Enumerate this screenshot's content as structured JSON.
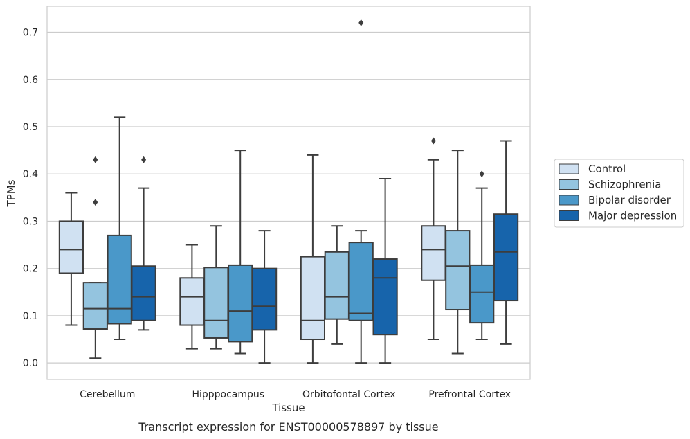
{
  "chart_data": {
    "type": "boxplot",
    "caption": "Transcript expression for ENST00000578897 by tissue",
    "xlabel": "Tissue",
    "ylabel": "TPMs",
    "ylim": [
      -0.035,
      0.755
    ],
    "yticks": [
      0.0,
      0.1,
      0.2,
      0.3,
      0.4,
      0.5,
      0.6,
      0.7
    ],
    "ytick_labels": [
      "0.0",
      "0.1",
      "0.2",
      "0.3",
      "0.4",
      "0.5",
      "0.6",
      "0.7"
    ],
    "grid": "horizontal",
    "legend_position": "right",
    "categories": [
      "Cerebellum",
      "Hipppocampus",
      "Orbitofontal Cortex",
      "Prefrontal Cortex"
    ],
    "series": [
      {
        "name": "Control",
        "color": "#d0e1f2",
        "boxes": [
          {
            "whisker_low": 0.08,
            "q1": 0.19,
            "median": 0.24,
            "q3": 0.3,
            "whisker_high": 0.36,
            "outliers": []
          },
          {
            "whisker_low": 0.03,
            "q1": 0.08,
            "median": 0.14,
            "q3": 0.18,
            "whisker_high": 0.25,
            "outliers": []
          },
          {
            "whisker_low": 0.0,
            "q1": 0.05,
            "median": 0.09,
            "q3": 0.225,
            "whisker_high": 0.44,
            "outliers": []
          },
          {
            "whisker_low": 0.05,
            "q1": 0.175,
            "median": 0.24,
            "q3": 0.29,
            "whisker_high": 0.43,
            "outliers": [
              0.47
            ]
          }
        ]
      },
      {
        "name": "Schizophrenia",
        "color": "#94c4df",
        "boxes": [
          {
            "whisker_low": 0.01,
            "q1": 0.072,
            "median": 0.115,
            "q3": 0.17,
            "whisker_high": 0.17,
            "outliers": [
              0.34,
              0.43
            ]
          },
          {
            "whisker_low": 0.03,
            "q1": 0.053,
            "median": 0.09,
            "q3": 0.202,
            "whisker_high": 0.29,
            "outliers": []
          },
          {
            "whisker_low": 0.04,
            "q1": 0.093,
            "median": 0.14,
            "q3": 0.235,
            "whisker_high": 0.29,
            "outliers": []
          },
          {
            "whisker_low": 0.02,
            "q1": 0.113,
            "median": 0.205,
            "q3": 0.28,
            "whisker_high": 0.45,
            "outliers": []
          }
        ]
      },
      {
        "name": "Bipolar disorder",
        "color": "#4a98c9",
        "boxes": [
          {
            "whisker_low": 0.05,
            "q1": 0.083,
            "median": 0.115,
            "q3": 0.27,
            "whisker_high": 0.52,
            "outliers": []
          },
          {
            "whisker_low": 0.02,
            "q1": 0.045,
            "median": 0.11,
            "q3": 0.207,
            "whisker_high": 0.45,
            "outliers": []
          },
          {
            "whisker_low": 0.0,
            "q1": 0.09,
            "median": 0.105,
            "q3": 0.255,
            "whisker_high": 0.28,
            "outliers": [
              0.72
            ]
          },
          {
            "whisker_low": 0.05,
            "q1": 0.085,
            "median": 0.15,
            "q3": 0.207,
            "whisker_high": 0.37,
            "outliers": [
              0.4
            ]
          }
        ]
      },
      {
        "name": "Major depression",
        "color": "#1764ab",
        "boxes": [
          {
            "whisker_low": 0.07,
            "q1": 0.09,
            "median": 0.14,
            "q3": 0.205,
            "whisker_high": 0.37,
            "outliers": [
              0.43
            ]
          },
          {
            "whisker_low": 0.0,
            "q1": 0.07,
            "median": 0.12,
            "q3": 0.2,
            "whisker_high": 0.28,
            "outliers": []
          },
          {
            "whisker_low": 0.0,
            "q1": 0.06,
            "median": 0.18,
            "q3": 0.22,
            "whisker_high": 0.39,
            "outliers": []
          },
          {
            "whisker_low": 0.04,
            "q1": 0.132,
            "median": 0.235,
            "q3": 0.315,
            "whisker_high": 0.47,
            "outliers": []
          }
        ]
      }
    ]
  }
}
